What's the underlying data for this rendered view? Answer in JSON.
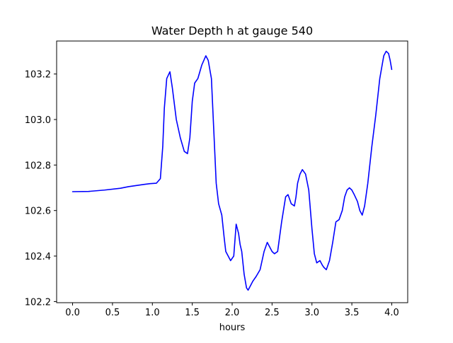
{
  "chart_data": {
    "type": "line",
    "title": "Water Depth h at gauge 540",
    "xlabel": "hours",
    "ylabel": "",
    "xlim": [
      -0.2,
      4.2
    ],
    "ylim": [
      102.195,
      103.345
    ],
    "xticks": [
      0.0,
      0.5,
      1.0,
      1.5,
      2.0,
      2.5,
      3.0,
      3.5,
      4.0
    ],
    "xtick_labels": [
      "0.0",
      "0.5",
      "1.0",
      "1.5",
      "2.0",
      "2.5",
      "3.0",
      "3.5",
      "4.0"
    ],
    "yticks": [
      102.2,
      102.4,
      102.6,
      102.8,
      103.0,
      103.2
    ],
    "ytick_labels": [
      "102.2",
      "102.4",
      "102.6",
      "102.8",
      "103.0",
      "103.2"
    ],
    "grid": false,
    "series": [
      {
        "color": "#0000ff",
        "x": [
          0.0,
          0.2,
          0.4,
          0.6,
          0.7,
          0.8,
          0.9,
          0.97,
          1.05,
          1.1,
          1.13,
          1.15,
          1.18,
          1.22,
          1.25,
          1.3,
          1.35,
          1.4,
          1.44,
          1.47,
          1.5,
          1.53,
          1.57,
          1.62,
          1.67,
          1.7,
          1.74,
          1.77,
          1.8,
          1.83,
          1.87,
          1.9,
          1.92,
          1.95,
          1.98,
          2.02,
          2.05,
          2.08,
          2.1,
          2.12,
          2.15,
          2.18,
          2.2,
          2.23,
          2.26,
          2.3,
          2.35,
          2.4,
          2.44,
          2.47,
          2.5,
          2.53,
          2.57,
          2.62,
          2.67,
          2.7,
          2.74,
          2.78,
          2.8,
          2.82,
          2.85,
          2.88,
          2.92,
          2.96,
          3.0,
          3.03,
          3.06,
          3.1,
          3.13,
          3.15,
          3.18,
          3.22,
          3.26,
          3.3,
          3.34,
          3.38,
          3.41,
          3.44,
          3.47,
          3.5,
          3.53,
          3.57,
          3.6,
          3.63,
          3.66,
          3.7,
          3.75,
          3.8,
          3.85,
          3.9,
          3.93,
          3.96,
          3.98,
          4.0
        ],
        "y": [
          102.683,
          102.684,
          102.69,
          102.698,
          102.705,
          102.71,
          102.715,
          102.718,
          102.72,
          102.74,
          102.88,
          103.05,
          103.18,
          103.21,
          103.14,
          103.0,
          102.92,
          102.86,
          102.85,
          102.92,
          103.08,
          103.16,
          103.18,
          103.24,
          103.28,
          103.26,
          103.18,
          102.95,
          102.72,
          102.63,
          102.58,
          102.48,
          102.42,
          102.4,
          102.38,
          102.4,
          102.54,
          102.5,
          102.45,
          102.42,
          102.32,
          102.26,
          102.25,
          102.27,
          102.29,
          102.31,
          102.34,
          102.42,
          102.46,
          102.44,
          102.42,
          102.41,
          102.42,
          102.55,
          102.66,
          102.67,
          102.63,
          102.62,
          102.66,
          102.72,
          102.76,
          102.78,
          102.76,
          102.69,
          102.52,
          102.41,
          102.37,
          102.38,
          102.36,
          102.35,
          102.34,
          102.38,
          102.46,
          102.55,
          102.56,
          102.6,
          102.66,
          102.69,
          102.7,
          102.69,
          102.67,
          102.64,
          102.6,
          102.58,
          102.62,
          102.72,
          102.88,
          103.02,
          103.18,
          103.28,
          103.3,
          103.29,
          103.26,
          103.22
        ]
      }
    ]
  }
}
